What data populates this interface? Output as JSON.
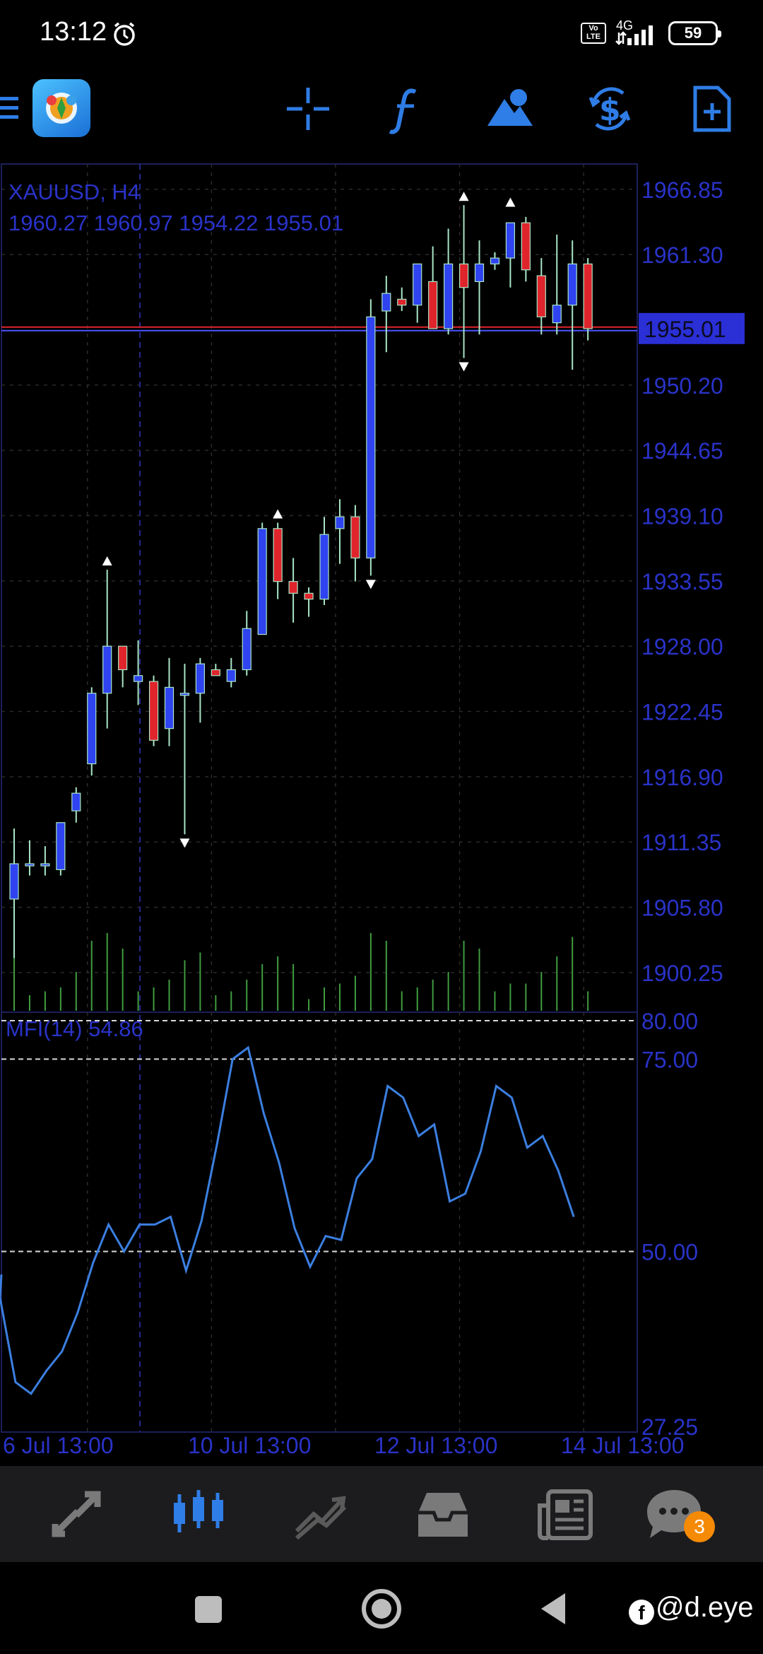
{
  "status": {
    "time": "13:12",
    "network": "4G",
    "volte": "Vo LTE",
    "battery": "59"
  },
  "toolbar": {
    "icons": [
      "menu-icon",
      "app-logo",
      "crosshair-icon",
      "indicators-icon",
      "objects-icon",
      "trade-icon",
      "new-order-icon"
    ]
  },
  "chart": {
    "symbol_line": "XAUUSD, H4",
    "ohlc_line": "1960.27 1960.97 1954.22 1955.01",
    "current_price": "1955.01",
    "price_labels": [
      "1966.85",
      "1961.30",
      "1950.20",
      "1944.65",
      "1939.10",
      "1933.55",
      "1928.00",
      "1922.45",
      "1916.90",
      "1911.35",
      "1905.80",
      "1900.25"
    ],
    "date_labels": [
      "6 Jul 13:00",
      "10 Jul 13:00",
      "12 Jul 13:00",
      "14 Jul 13:00"
    ],
    "mfi_label": "MFI(14) 54.86",
    "mfi_levels": [
      "80.00",
      "75.00",
      "50.00",
      "27.25"
    ],
    "colors": {
      "bull": "#2f43f0",
      "bear": "#e0242c",
      "wick": "#a8e6c6",
      "grid": "#2a2a2a",
      "axis_text": "#2a33c8",
      "volume": "#3f9d3f",
      "mfi_line": "#3b7fe0",
      "price_line": "#e0242c"
    }
  },
  "chart_data": {
    "type": "candlestick",
    "symbol": "XAUUSD",
    "timeframe": "H4",
    "ylim": [
      1897,
      1969
    ],
    "candles": [
      {
        "o": 1906.5,
        "h": 1912.5,
        "l": 1901.5,
        "c": 1909.5
      },
      {
        "o": 1909.5,
        "h": 1911.5,
        "l": 1908.5,
        "c": 1909.5
      },
      {
        "o": 1909.5,
        "h": 1911.0,
        "l": 1908.5,
        "c": 1909.5
      },
      {
        "o": 1909.0,
        "h": 1913.0,
        "l": 1908.5,
        "c": 1913.0
      },
      {
        "o": 1914.0,
        "h": 1916.0,
        "l": 1913.0,
        "c": 1915.5
      },
      {
        "o": 1918.0,
        "h": 1924.5,
        "l": 1917.0,
        "c": 1924.0
      },
      {
        "o": 1924.0,
        "h": 1934.5,
        "l": 1921.0,
        "c": 1928.0
      },
      {
        "o": 1928.0,
        "h": 1928.0,
        "l": 1924.5,
        "c": 1926.0
      },
      {
        "o": 1925.0,
        "h": 1928.5,
        "l": 1923.0,
        "c": 1925.5
      },
      {
        "o": 1925.0,
        "h": 1925.5,
        "l": 1919.5,
        "c": 1920.0
      },
      {
        "o": 1921.0,
        "h": 1927.0,
        "l": 1919.5,
        "c": 1924.5
      },
      {
        "o": 1924.0,
        "h": 1926.5,
        "l": 1912.0,
        "c": 1924.0
      },
      {
        "o": 1924.0,
        "h": 1927.0,
        "l": 1921.5,
        "c": 1926.5
      },
      {
        "o": 1926.0,
        "h": 1926.5,
        "l": 1925.5,
        "c": 1925.5
      },
      {
        "o": 1925.0,
        "h": 1927.0,
        "l": 1924.5,
        "c": 1926.0
      },
      {
        "o": 1926.0,
        "h": 1931.0,
        "l": 1925.5,
        "c": 1929.5
      },
      {
        "o": 1929.0,
        "h": 1938.5,
        "l": 1929.0,
        "c": 1938.0
      },
      {
        "o": 1938.0,
        "h": 1938.5,
        "l": 1932.0,
        "c": 1933.5
      },
      {
        "o": 1933.5,
        "h": 1935.5,
        "l": 1930.0,
        "c": 1932.5
      },
      {
        "o": 1932.5,
        "h": 1933.0,
        "l": 1930.5,
        "c": 1932.0
      },
      {
        "o": 1932.0,
        "h": 1939.0,
        "l": 1931.5,
        "c": 1937.5
      },
      {
        "o": 1938.0,
        "h": 1940.5,
        "l": 1935.0,
        "c": 1939.0
      },
      {
        "o": 1939.0,
        "h": 1940.0,
        "l": 1933.5,
        "c": 1935.5
      },
      {
        "o": 1935.5,
        "h": 1957.5,
        "l": 1934.0,
        "c": 1956.0
      },
      {
        "o": 1956.5,
        "h": 1959.5,
        "l": 1953.0,
        "c": 1958.0
      },
      {
        "o": 1957.5,
        "h": 1958.5,
        "l": 1956.5,
        "c": 1957.0
      },
      {
        "o": 1957.0,
        "h": 1960.5,
        "l": 1955.5,
        "c": 1960.5
      },
      {
        "o": 1959.0,
        "h": 1962.0,
        "l": 1955.0,
        "c": 1955.0
      },
      {
        "o": 1955.0,
        "h": 1963.5,
        "l": 1954.5,
        "c": 1960.5
      },
      {
        "o": 1960.5,
        "h": 1965.5,
        "l": 1952.5,
        "c": 1958.5
      },
      {
        "o": 1959.0,
        "h": 1962.5,
        "l": 1954.5,
        "c": 1960.5
      },
      {
        "o": 1960.5,
        "h": 1961.5,
        "l": 1960.0,
        "c": 1961.0
      },
      {
        "o": 1961.0,
        "h": 1963.5,
        "l": 1958.5,
        "c": 1964.0
      },
      {
        "o": 1964.0,
        "h": 1964.5,
        "l": 1959.0,
        "c": 1960.0
      },
      {
        "o": 1959.5,
        "h": 1961.0,
        "l": 1954.5,
        "c": 1956.0
      },
      {
        "o": 1955.5,
        "h": 1963.0,
        "l": 1954.5,
        "c": 1957.0
      },
      {
        "o": 1957.0,
        "h": 1962.5,
        "l": 1951.5,
        "c": 1960.5
      },
      {
        "o": 1960.5,
        "h": 1961.0,
        "l": 1954.0,
        "c": 1955.0
      }
    ],
    "volumes": [
      0.95,
      0.2,
      0.25,
      0.3,
      0.5,
      0.9,
      1.0,
      0.8,
      0.25,
      0.3,
      0.4,
      0.65,
      0.75,
      0.2,
      0.25,
      0.4,
      0.6,
      0.7,
      0.6,
      0.15,
      0.3,
      0.35,
      0.45,
      1.0,
      0.9,
      0.25,
      0.3,
      0.4,
      0.5,
      0.9,
      0.8,
      0.25,
      0.35,
      0.35,
      0.5,
      0.7,
      0.95,
      0.25
    ],
    "mfi": {
      "ylim": [
        27.25,
        80
      ],
      "levels": [
        80,
        75,
        50
      ],
      "values": [
        44,
        33,
        31.5,
        34.5,
        37,
        42,
        48.5,
        53.5,
        50,
        53.5,
        53.5,
        54.5,
        47.5,
        54,
        64,
        75,
        76.5,
        68,
        61.5,
        53,
        48,
        52,
        51.5,
        59.5,
        62,
        71.5,
        70,
        65,
        66.5,
        56.5,
        57.5,
        63,
        71.5,
        70,
        63.5,
        65,
        60.5,
        54.5
      ]
    },
    "x_labels": [
      "6 Jul 13:00",
      "10 Jul 13:00",
      "12 Jul 13:00",
      "14 Jul 13:00"
    ]
  },
  "bottom_nav": {
    "items": [
      "quotes-icon",
      "charts-icon",
      "trade-icon",
      "history-icon",
      "news-icon",
      "messages-icon"
    ],
    "badge": "3"
  },
  "watermark": "@d.eye"
}
